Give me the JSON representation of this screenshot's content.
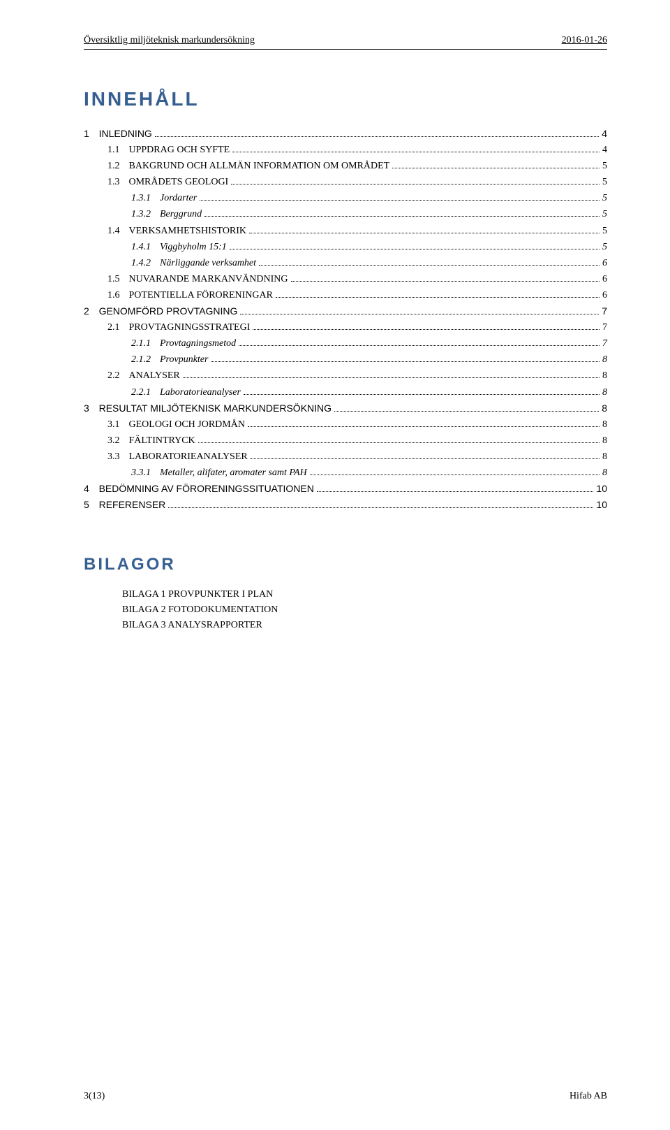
{
  "header": {
    "left": "Översiktlig miljöteknisk markundersökning",
    "right": "2016-01-26"
  },
  "title": "INNEHÅLL",
  "toc": [
    {
      "num": "1",
      "text": "INLEDNING",
      "page": "4",
      "level": 1,
      "sans": true
    },
    {
      "num": "1.1",
      "text": "UPPDRAG OCH SYFTE",
      "page": "4",
      "level": 2
    },
    {
      "num": "1.2",
      "text": "BAKGRUND OCH ALLMÄN INFORMATION OM OMRÅDET",
      "page": "5",
      "level": 2
    },
    {
      "num": "1.3",
      "text": "OMRÅDETS GEOLOGI",
      "page": "5",
      "level": 2
    },
    {
      "num": "1.3.1",
      "text": "Jordarter",
      "page": "5",
      "level": 3
    },
    {
      "num": "1.3.2",
      "text": "Berggrund",
      "page": "5",
      "level": 3
    },
    {
      "num": "1.4",
      "text": "VERKSAMHETSHISTORIK",
      "page": "5",
      "level": 2
    },
    {
      "num": "1.4.1",
      "text": "Viggbyholm 15:1",
      "page": "5",
      "level": 3
    },
    {
      "num": "1.4.2",
      "text": "Närliggande verksamhet",
      "page": "6",
      "level": 3
    },
    {
      "num": "1.5",
      "text": "NUVARANDE MARKANVÄNDNING",
      "page": "6",
      "level": 2
    },
    {
      "num": "1.6",
      "text": "POTENTIELLA FÖRORENINGAR",
      "page": "6",
      "level": 2
    },
    {
      "num": "2",
      "text": "GENOMFÖRD PROVTAGNING",
      "page": "7",
      "level": 1,
      "sans": true
    },
    {
      "num": "2.1",
      "text": "PROVTAGNINGSSTRATEGI",
      "page": "7",
      "level": 2
    },
    {
      "num": "2.1.1",
      "text": "Provtagningsmetod",
      "page": "7",
      "level": 3
    },
    {
      "num": "2.1.2",
      "text": "Provpunkter",
      "page": "8",
      "level": 3
    },
    {
      "num": "2.2",
      "text": "ANALYSER",
      "page": "8",
      "level": 2
    },
    {
      "num": "2.2.1",
      "text": "Laboratorieanalyser",
      "page": "8",
      "level": 3
    },
    {
      "num": "3",
      "text": "RESULTAT MILJÖTEKNISK MARKUNDERSÖKNING",
      "page": "8",
      "level": 1,
      "sans": true
    },
    {
      "num": "3.1",
      "text": "GEOLOGI OCH JORDMÅN",
      "page": "8",
      "level": 2
    },
    {
      "num": "3.2",
      "text": "FÄLTINTRYCK",
      "page": "8",
      "level": 2
    },
    {
      "num": "3.3",
      "text": "LABORATORIEANALYSER",
      "page": "8",
      "level": 2
    },
    {
      "num": "3.3.1",
      "text": "Metaller, alifater, aromater samt PAH",
      "page": "8",
      "level": 3
    },
    {
      "num": "4",
      "text": "BEDÖMNING AV FÖRORENINGSSITUATIONEN",
      "page": "10",
      "level": 1,
      "sans": true
    },
    {
      "num": "5",
      "text": "REFERENSER",
      "page": "10",
      "level": 1,
      "sans": true
    }
  ],
  "bilagor": {
    "title": "BILAGOR",
    "items": [
      "BILAGA 1 PROVPUNKTER I PLAN",
      "BILAGA 2 FOTODOKUMENTATION",
      "BILAGA 3 ANALYSRAPPORTER"
    ]
  },
  "footer": {
    "left": "3(13)",
    "right": "Hifab AB"
  }
}
